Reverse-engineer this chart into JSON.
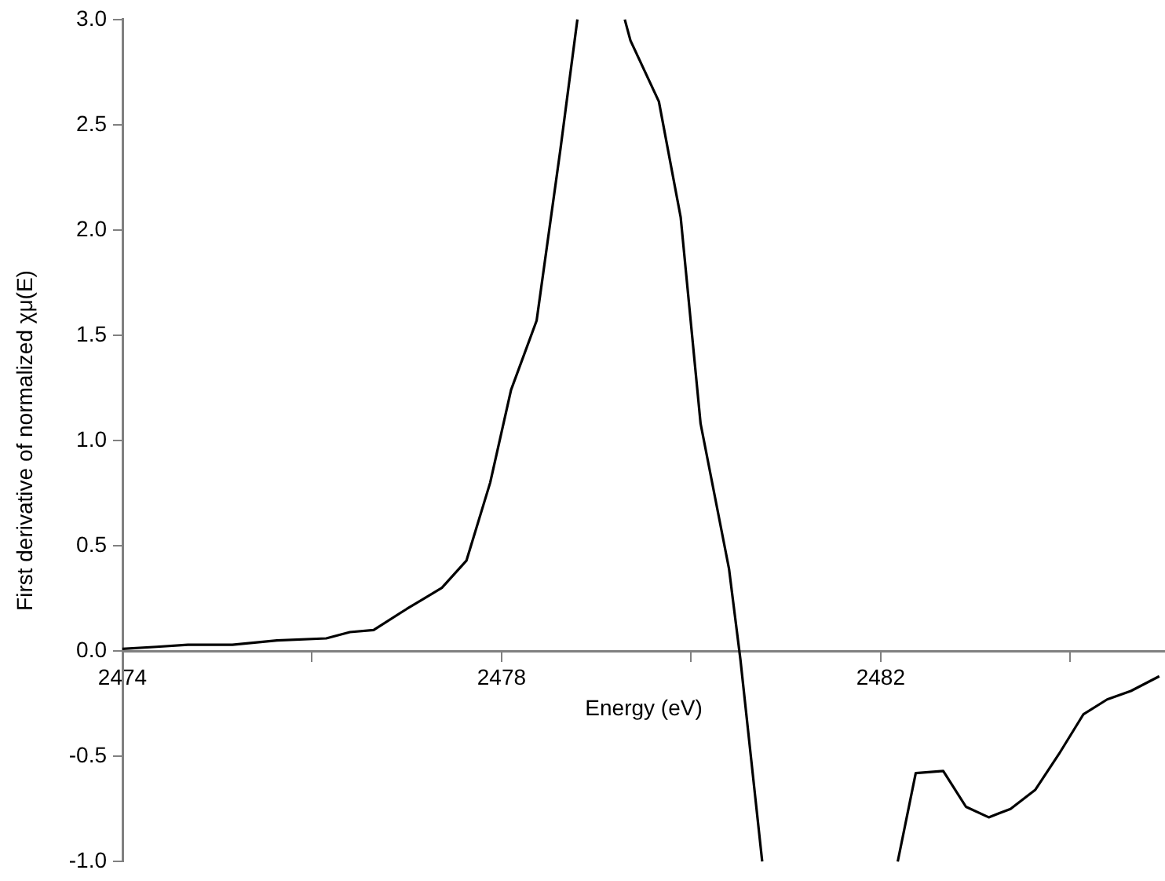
{
  "chart_data": {
    "type": "line",
    "xlabel": "Energy (eV)",
    "ylabel": "First derivative of normalized χμ(E)",
    "xlim": [
      2474,
      2485
    ],
    "ylim": [
      -1,
      3
    ],
    "xticks": [
      2474,
      {
        "value": 2476,
        "label": null
      },
      2478,
      {
        "value": 2480,
        "label": null
      },
      2482,
      {
        "value": 2484,
        "label": null
      }
    ],
    "yticks": [
      {
        "value": -1,
        "label": "-1.0"
      },
      -0.5,
      {
        "value": 0,
        "label": "0.0"
      },
      0.5,
      {
        "value": 1,
        "label": "1.0"
      },
      1.5,
      {
        "value": 2,
        "label": "2.0"
      },
      2.5,
      {
        "value": 3,
        "label": "3.0"
      }
    ],
    "grid": false,
    "legend": false,
    "marker": "none",
    "line_style": "solid",
    "series": [
      {
        "color": "#000000",
        "x": [
          2474,
          2474.36,
          2474.69,
          2475.16,
          2475.63,
          2476.15,
          2476.4,
          2476.65,
          2477.0,
          2477.37,
          2477.63,
          2477.88,
          2478.1,
          2478.37,
          2478.62,
          2478.8,
          2479.05,
          2479.3,
          2479.36,
          2479.66,
          2479.89,
          2480.1,
          2480.4,
          2480.52,
          2480.75,
          2481.5,
          2482.18,
          2482.37,
          2482.66,
          2482.9,
          2483.14,
          2483.37,
          2483.63,
          2483.88,
          2484.14,
          2484.39,
          2484.64,
          2484.94
        ],
        "values": [
          0.01,
          0.02,
          0.03,
          0.03,
          0.05,
          0.06,
          0.09,
          0.1,
          0.2,
          0.3,
          0.43,
          0.8,
          1.24,
          1.57,
          2.38,
          3.0,
          null,
          3.0,
          2.9,
          2.61,
          2.06,
          1.08,
          0.39,
          -0.04,
          -1.0,
          null,
          -1.0,
          -0.58,
          -0.57,
          -0.74,
          -0.79,
          -0.75,
          -0.66,
          -0.49,
          -0.3,
          -0.23,
          -0.19,
          -0.12
        ]
      }
    ]
  }
}
